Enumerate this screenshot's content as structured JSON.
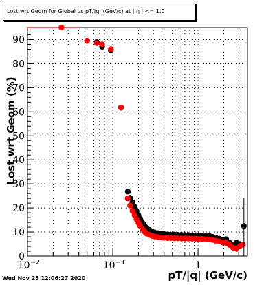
{
  "title": "Lost wrt Geom for Global vs pT/|q| (GeV/c) at | η | <= 1.0",
  "timestamp": "Wed Nov 25 12:06:27 2020",
  "chart_data": {
    "type": "scatter",
    "xlabel": "pT/|q| (GeV/c)",
    "ylabel": "Lost wrt Geom (%)",
    "xscale": "log",
    "xlim": [
      0.01,
      3.8
    ],
    "ylim": [
      0,
      95
    ],
    "grid": true,
    "x_tick_labels": [
      {
        "value": 0.01,
        "base": "10",
        "exp": "−2"
      },
      {
        "value": 0.1,
        "base": "10",
        "exp": "−1"
      },
      {
        "value": 1,
        "base": "1",
        "exp": ""
      }
    ],
    "y_tick_labels": [
      "0",
      "10",
      "20",
      "30",
      "40",
      "50",
      "60",
      "70",
      "80",
      "90"
    ],
    "series": [
      {
        "color": "#000000",
        "points": [
          {
            "x": 0.05,
            "y": 89.5
          },
          {
            "x": 0.065,
            "y": 89.0
          },
          {
            "x": 0.075,
            "y": 87.0
          },
          {
            "x": 0.095,
            "y": 85.5
          },
          {
            "x": 0.125,
            "y": 61.8
          },
          {
            "x": 0.15,
            "y": 26.8
          },
          {
            "x": 0.16,
            "y": 24.2
          },
          {
            "x": 0.17,
            "y": 22.3
          },
          {
            "x": 0.18,
            "y": 20.5
          },
          {
            "x": 0.19,
            "y": 18.8
          },
          {
            "x": 0.2,
            "y": 17.0
          },
          {
            "x": 0.21,
            "y": 15.5
          },
          {
            "x": 0.22,
            "y": 14.2
          },
          {
            "x": 0.23,
            "y": 13.1
          },
          {
            "x": 0.24,
            "y": 12.2
          },
          {
            "x": 0.25,
            "y": 11.5
          },
          {
            "x": 0.27,
            "y": 10.8
          },
          {
            "x": 0.29,
            "y": 10.2
          },
          {
            "x": 0.31,
            "y": 9.8
          },
          {
            "x": 0.34,
            "y": 9.5
          },
          {
            "x": 0.37,
            "y": 9.3
          },
          {
            "x": 0.4,
            "y": 9.1
          },
          {
            "x": 0.44,
            "y": 9.0
          },
          {
            "x": 0.48,
            "y": 8.9
          },
          {
            "x": 0.53,
            "y": 8.9
          },
          {
            "x": 0.58,
            "y": 8.8
          },
          {
            "x": 0.64,
            "y": 8.8
          },
          {
            "x": 0.7,
            "y": 8.7
          },
          {
            "x": 0.77,
            "y": 8.7
          },
          {
            "x": 0.85,
            "y": 8.6
          },
          {
            "x": 0.93,
            "y": 8.5
          },
          {
            "x": 1.02,
            "y": 8.6
          },
          {
            "x": 1.12,
            "y": 8.4
          },
          {
            "x": 1.23,
            "y": 8.3
          },
          {
            "x": 1.35,
            "y": 8.4
          },
          {
            "x": 1.48,
            "y": 8.0
          },
          {
            "x": 1.62,
            "y": 7.6
          },
          {
            "x": 1.78,
            "y": 7.2
          },
          {
            "x": 1.95,
            "y": 6.6
          },
          {
            "x": 2.14,
            "y": 7.0
          },
          {
            "x": 2.35,
            "y": 5.5
          },
          {
            "x": 2.58,
            "y": 4.5
          },
          {
            "x": 2.83,
            "y": 5.5
          },
          {
            "x": 3.1,
            "y": 5.0
          },
          {
            "x": 3.45,
            "y": 12.5
          }
        ]
      },
      {
        "color": "#ff0000",
        "points": [
          {
            "x": 0.025,
            "y": 95.0
          },
          {
            "x": 0.05,
            "y": 89.5
          },
          {
            "x": 0.065,
            "y": 88.5
          },
          {
            "x": 0.075,
            "y": 88.0
          },
          {
            "x": 0.095,
            "y": 86.0
          },
          {
            "x": 0.125,
            "y": 61.7
          },
          {
            "x": 0.15,
            "y": 24.0
          },
          {
            "x": 0.16,
            "y": 21.0
          },
          {
            "x": 0.17,
            "y": 18.8
          },
          {
            "x": 0.18,
            "y": 17.0
          },
          {
            "x": 0.19,
            "y": 15.3
          },
          {
            "x": 0.2,
            "y": 13.8
          },
          {
            "x": 0.21,
            "y": 12.5
          },
          {
            "x": 0.22,
            "y": 11.5
          },
          {
            "x": 0.23,
            "y": 10.6
          },
          {
            "x": 0.24,
            "y": 9.9
          },
          {
            "x": 0.25,
            "y": 9.3
          },
          {
            "x": 0.27,
            "y": 8.8
          },
          {
            "x": 0.29,
            "y": 8.4
          },
          {
            "x": 0.31,
            "y": 8.1
          },
          {
            "x": 0.34,
            "y": 7.9
          },
          {
            "x": 0.37,
            "y": 7.7
          },
          {
            "x": 0.4,
            "y": 7.6
          },
          {
            "x": 0.44,
            "y": 7.5
          },
          {
            "x": 0.48,
            "y": 7.5
          },
          {
            "x": 0.53,
            "y": 7.4
          },
          {
            "x": 0.58,
            "y": 7.4
          },
          {
            "x": 0.64,
            "y": 7.3
          },
          {
            "x": 0.7,
            "y": 7.3
          },
          {
            "x": 0.77,
            "y": 7.3
          },
          {
            "x": 0.85,
            "y": 7.2
          },
          {
            "x": 0.93,
            "y": 7.2
          },
          {
            "x": 1.02,
            "y": 7.1
          },
          {
            "x": 1.12,
            "y": 7.1
          },
          {
            "x": 1.23,
            "y": 7.0
          },
          {
            "x": 1.35,
            "y": 6.9
          },
          {
            "x": 1.48,
            "y": 6.7
          },
          {
            "x": 1.62,
            "y": 6.4
          },
          {
            "x": 1.78,
            "y": 6.1
          },
          {
            "x": 1.95,
            "y": 5.7
          },
          {
            "x": 2.14,
            "y": 5.4
          },
          {
            "x": 2.35,
            "y": 4.6
          },
          {
            "x": 2.58,
            "y": 3.5
          },
          {
            "x": 2.83,
            "y": 3.0
          },
          {
            "x": 3.1,
            "y": 4.2
          },
          {
            "x": 3.35,
            "y": 4.8
          }
        ]
      }
    ]
  }
}
